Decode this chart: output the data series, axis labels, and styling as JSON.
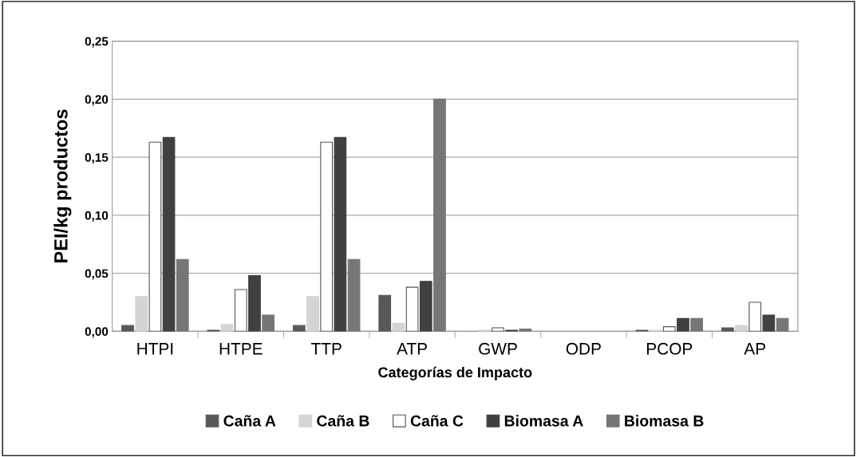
{
  "chart_data": {
    "type": "bar",
    "xlabel": "Categorías de Impacto",
    "ylabel": "PEI/kg productos",
    "categories": [
      "HTPI",
      "HTPE",
      "TTP",
      "ATP",
      "GWP",
      "ODP",
      "PCOP",
      "AP"
    ],
    "series": [
      {
        "name": "Caña A",
        "color": "#58585a",
        "values": [
          0.005,
          0.001,
          0.005,
          0.031,
          null,
          null,
          0.001,
          0.003
        ]
      },
      {
        "name": "Caña B",
        "color": "#d4d4d6",
        "values": [
          0.03,
          0.006,
          0.03,
          0.007,
          0.001,
          null,
          0.001,
          0.005
        ]
      },
      {
        "name": "Caña C",
        "color": "#ffffff",
        "values": [
          0.163,
          0.036,
          0.163,
          0.038,
          0.003,
          null,
          0.004,
          0.025
        ]
      },
      {
        "name": "Biomasa A",
        "color": "#404042",
        "values": [
          0.167,
          0.048,
          0.167,
          0.043,
          0.001,
          null,
          0.011,
          0.014
        ]
      },
      {
        "name": "Biomasa B",
        "color": "#767679",
        "values": [
          0.062,
          0.014,
          0.062,
          0.2,
          0.002,
          null,
          0.011,
          0.011
        ]
      }
    ],
    "ylim": [
      0,
      0.25
    ],
    "yticks": [
      {
        "value": 0,
        "label": "0,00"
      },
      {
        "value": 0.05,
        "label": "0,05"
      },
      {
        "value": 0.1,
        "label": "0,10"
      },
      {
        "value": 0.15,
        "label": "0,15"
      },
      {
        "value": 0.2,
        "label": "0,20"
      },
      {
        "value": 0.25,
        "label": "0,25"
      }
    ],
    "grid": "y",
    "legend": "bottom"
  }
}
